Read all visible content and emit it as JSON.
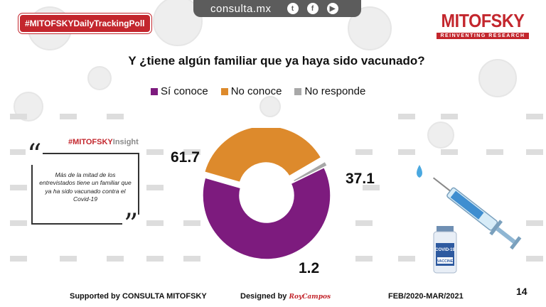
{
  "header": {
    "site": "consulta.mx",
    "social_icons": [
      "twitter-icon",
      "facebook-icon",
      "youtube-icon"
    ],
    "hashtag": "#MITOFSKYDailyTrackingPoll",
    "brand_name": "MITOFSKY",
    "brand_tagline": "REINVENTING RESEARCH"
  },
  "insight": {
    "hashtag": "#MITOFSKY",
    "label": "Insight",
    "text": "Más de la mitad de los entrevistados tiene un familiar que ya ha sido vacunado contra el Covid-19"
  },
  "chart_data": {
    "type": "pie",
    "donut": true,
    "title": "Y ¿tiene algún  familiar que ya haya sido vacunado?",
    "legend_position": "top",
    "categories": [
      "Sí conoce",
      "No conoce",
      "No responde"
    ],
    "values": [
      61.7,
      37.1,
      1.2
    ],
    "value_labels": [
      "61.7",
      "37.1",
      "1.2"
    ],
    "colors": [
      "#7d1b7e",
      "#dd8a2c",
      "#a8a8a8"
    ]
  },
  "footer": {
    "supported": "Supported by   CONSULTA   MITOFSKY",
    "designed": "Designed by",
    "designer": "RoyCampos",
    "period": "FEB/2020-MAR/2021",
    "page": "14"
  }
}
